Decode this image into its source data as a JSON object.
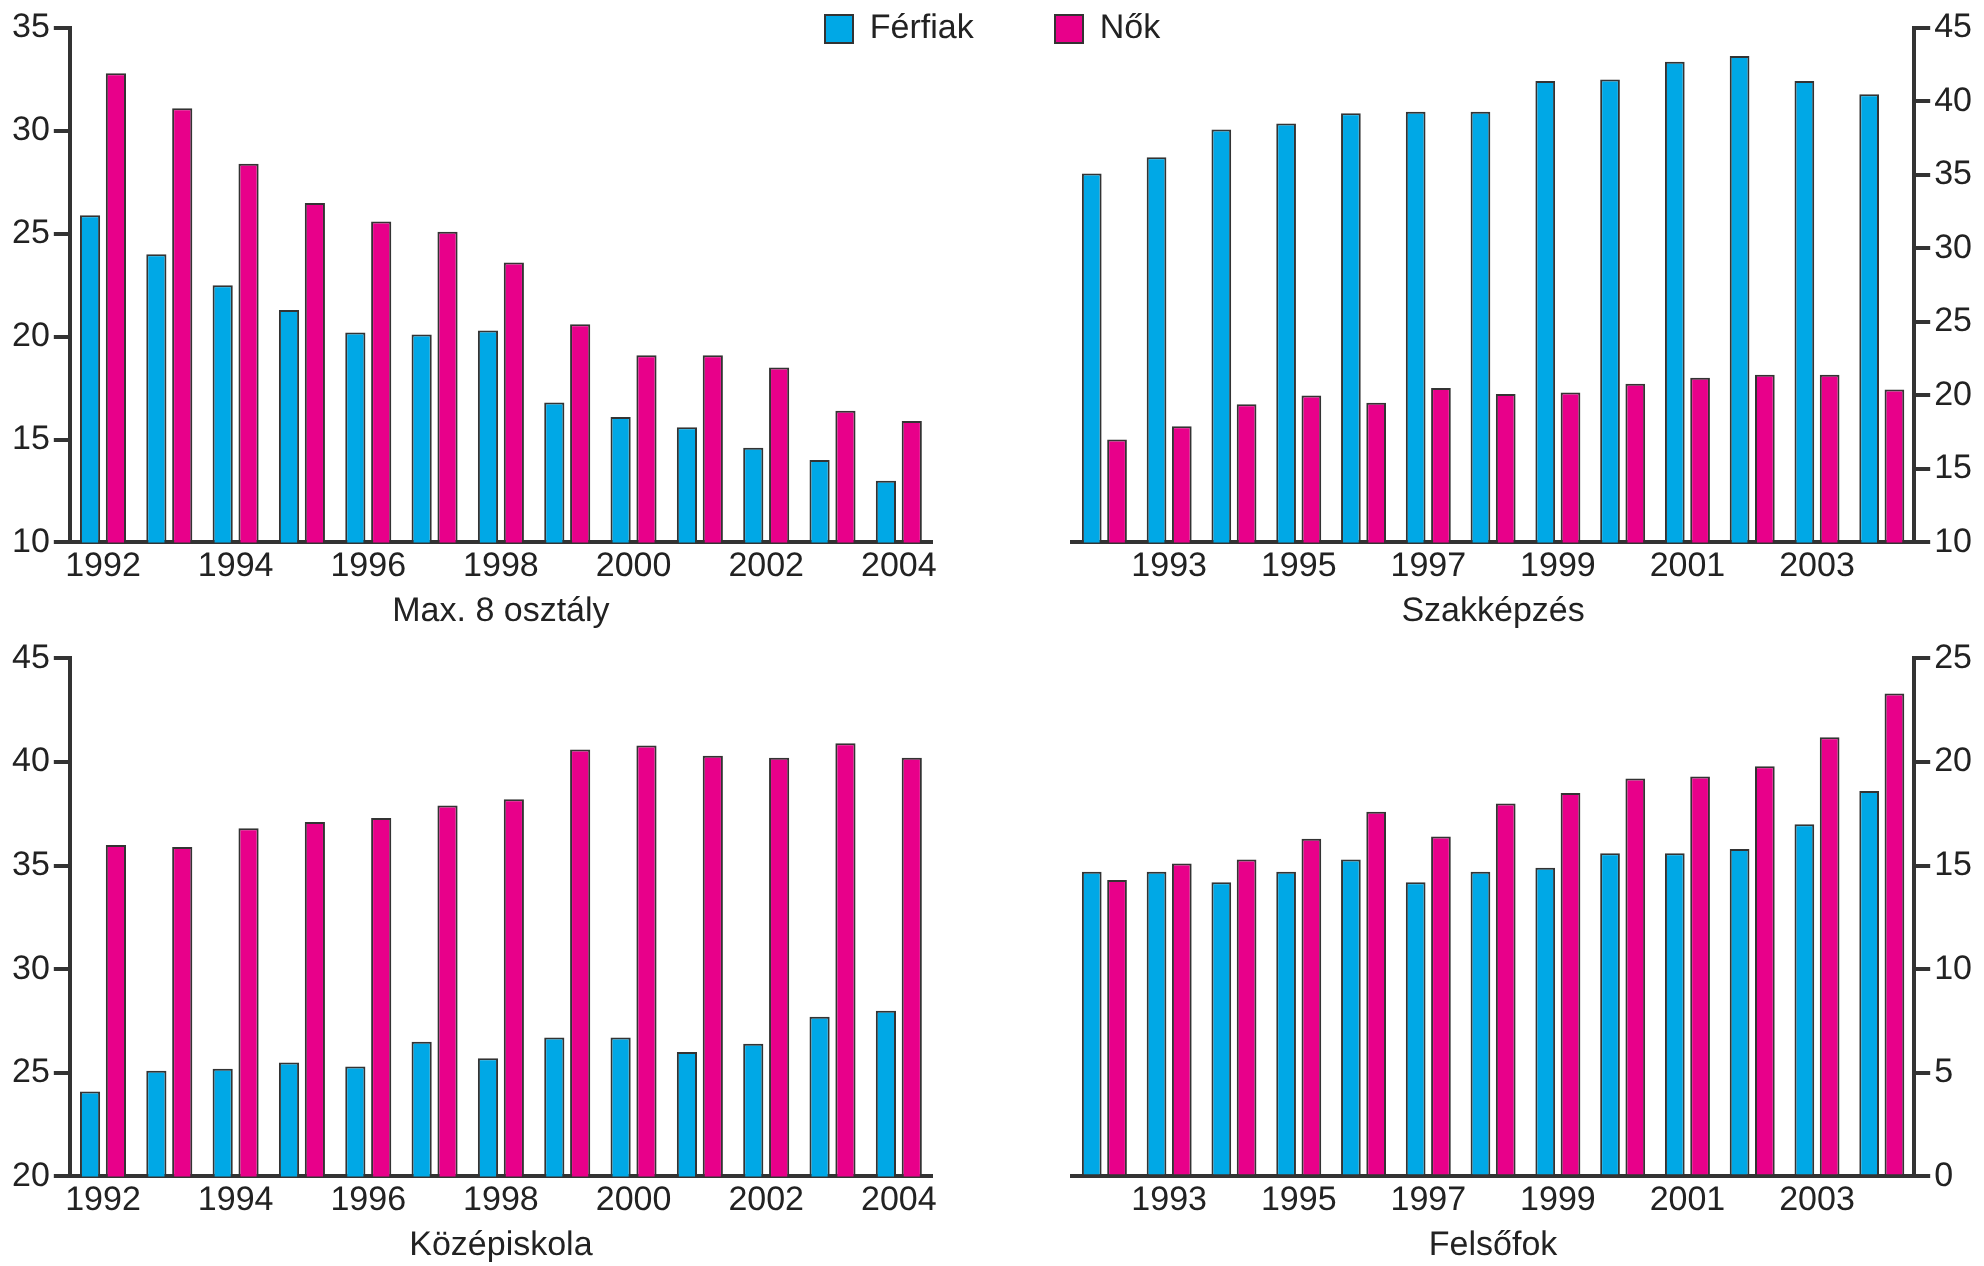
{
  "chart_data": [
    {
      "type": "bar",
      "xlabel": "Max. 8 osztály",
      "categories": [
        "1992",
        null,
        "1994",
        null,
        "1996",
        null,
        "1998",
        null,
        "2000",
        null,
        "2002",
        null,
        "2004"
      ],
      "legend": "top",
      "grid": false,
      "ylim": [
        10,
        35
      ],
      "yticks": [
        10,
        15,
        20,
        25,
        30,
        35
      ],
      "series": [
        {
          "name": "Férfiak",
          "color": "#00a8e6",
          "values": [
            25.9,
            24.0,
            22.5,
            21.3,
            20.2,
            20.1,
            20.3,
            16.8,
            16.1,
            15.6,
            14.6,
            14.0,
            13.0
          ]
        },
        {
          "name": "Nők",
          "color": "#e8008a",
          "values": [
            32.8,
            31.1,
            28.4,
            26.5,
            25.6,
            25.1,
            23.6,
            20.6,
            19.1,
            19.1,
            18.5,
            16.4,
            15.9
          ]
        }
      ]
    },
    {
      "type": "bar",
      "xlabel": "Szakképzés",
      "categories": [
        null,
        "1993",
        null,
        "1995",
        null,
        "1997",
        null,
        "1999",
        null,
        "2001",
        null,
        "2003",
        null
      ],
      "grid": false,
      "ylim": [
        10,
        45
      ],
      "yticks": [
        10,
        15,
        20,
        25,
        30,
        35,
        40,
        45
      ],
      "series": [
        {
          "color": "#00a8e6",
          "values": [
            35.1,
            36.2,
            38.1,
            38.5,
            39.2,
            39.3,
            39.3,
            41.4,
            41.5,
            42.7,
            43.1,
            41.4,
            40.5
          ]
        },
        {
          "color": "#e8008a",
          "values": [
            17.0,
            17.9,
            19.4,
            20.0,
            19.5,
            20.5,
            20.1,
            20.2,
            20.8,
            21.2,
            21.4,
            21.4,
            20.4
          ]
        }
      ]
    },
    {
      "type": "bar",
      "xlabel": "Középiskola",
      "categories": [
        "1992",
        null,
        "1994",
        null,
        "1996",
        null,
        "1998",
        null,
        "2000",
        null,
        "2002",
        null,
        "2004"
      ],
      "grid": false,
      "ylim": [
        20,
        45
      ],
      "yticks": [
        20,
        25,
        30,
        35,
        40,
        45
      ],
      "series": [
        {
          "color": "#00a8e6",
          "values": [
            24.1,
            25.1,
            25.2,
            25.5,
            25.3,
            26.5,
            25.7,
            26.7,
            26.7,
            26.0,
            26.4,
            27.7,
            28.0
          ]
        },
        {
          "color": "#e8008a",
          "values": [
            36.0,
            35.9,
            36.8,
            37.1,
            37.3,
            37.9,
            38.2,
            40.6,
            40.8,
            40.3,
            40.2,
            40.9,
            40.2
          ]
        }
      ]
    },
    {
      "type": "bar",
      "xlabel": "Felsőfok",
      "categories": [
        null,
        "1993",
        null,
        "1995",
        null,
        "1997",
        null,
        "1999",
        null,
        "2001",
        null,
        "2003",
        null
      ],
      "grid": false,
      "ylim": [
        0,
        25
      ],
      "yticks": [
        0,
        5,
        10,
        15,
        20,
        25
      ],
      "series": [
        {
          "color": "#00a8e6",
          "values": [
            14.7,
            14.7,
            14.2,
            14.7,
            15.3,
            14.2,
            14.7,
            14.9,
            15.6,
            15.6,
            15.8,
            17.0,
            18.6
          ]
        },
        {
          "color": "#e8008a",
          "values": [
            14.3,
            15.1,
            15.3,
            16.3,
            17.6,
            16.4,
            18.0,
            18.5,
            19.2,
            19.3,
            19.8,
            21.2,
            23.3
          ]
        }
      ]
    }
  ]
}
